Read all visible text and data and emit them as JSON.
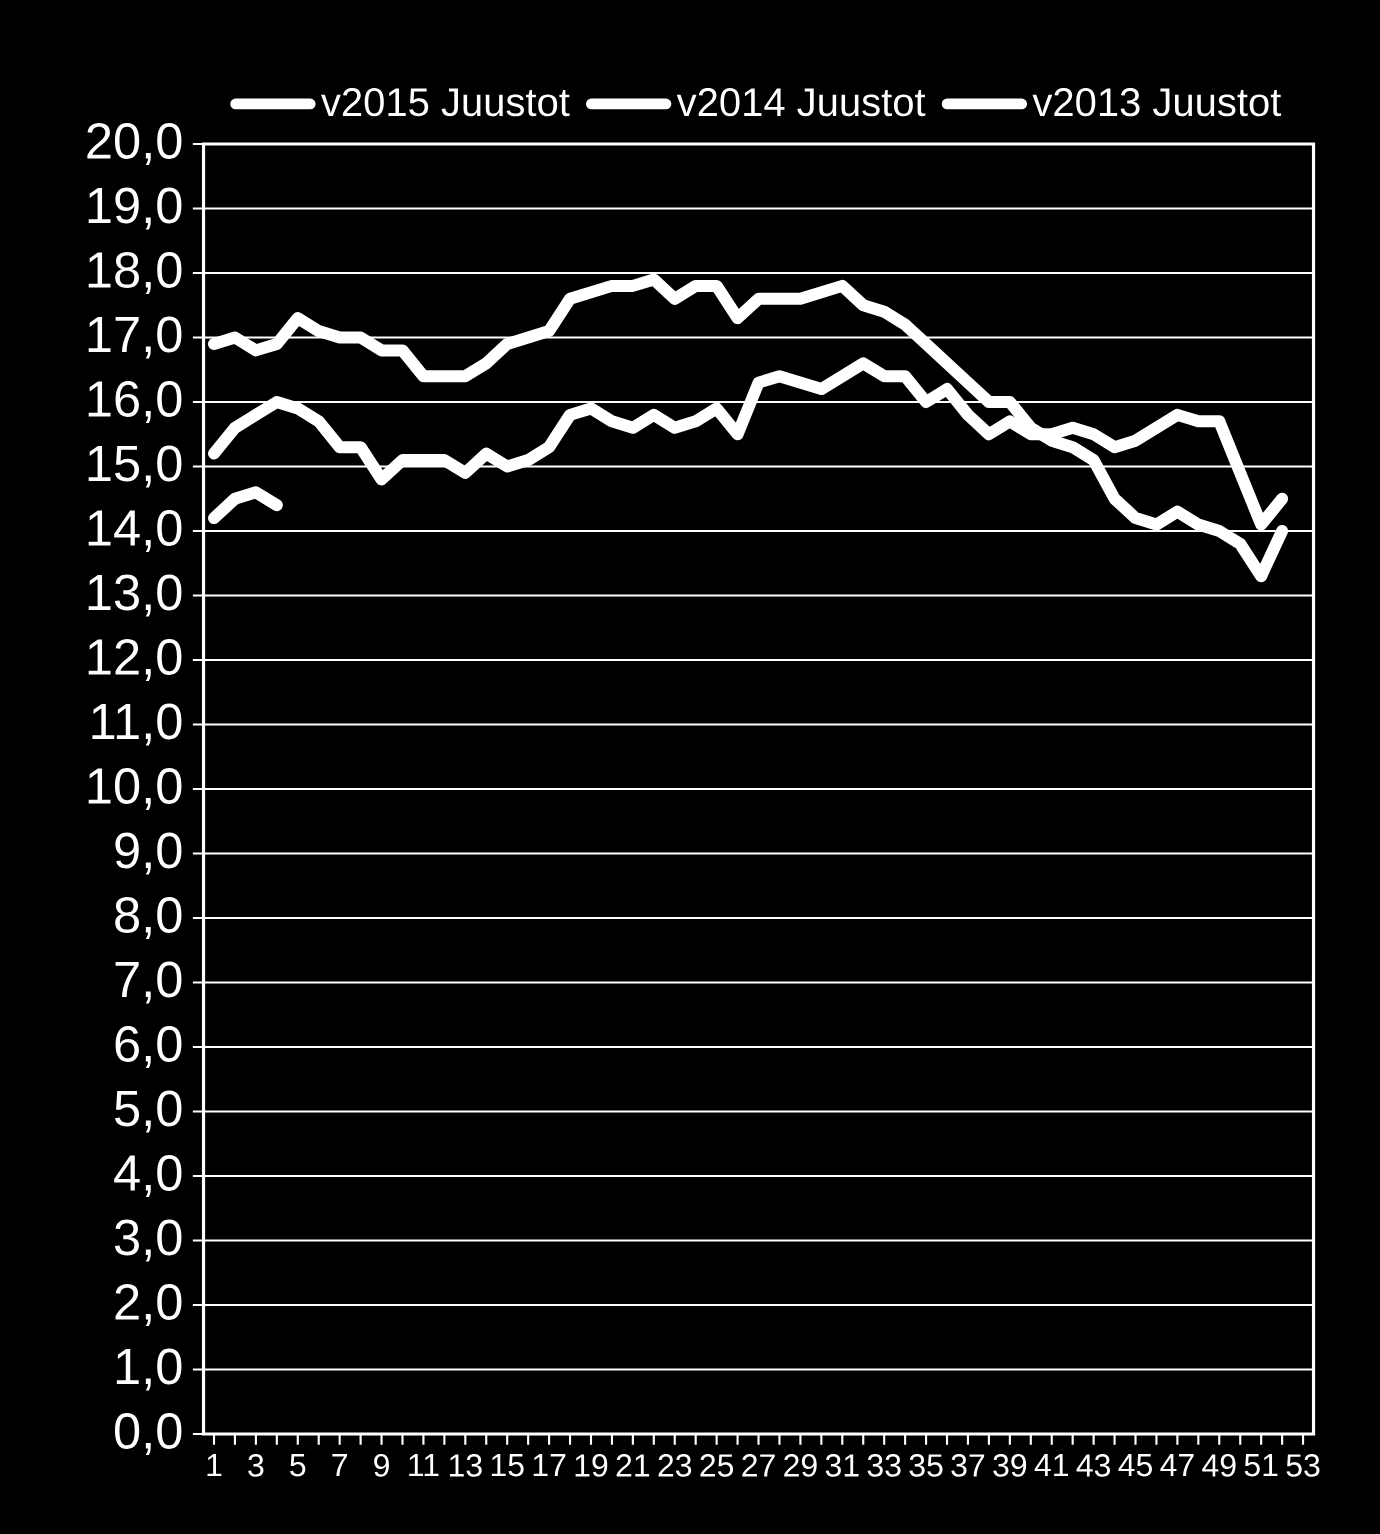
{
  "chart_data": {
    "type": "line",
    "categories": [
      "1",
      null,
      "3",
      null,
      "5",
      null,
      "7",
      null,
      "9",
      null,
      "11",
      null,
      "13",
      null,
      "15",
      null,
      "17",
      null,
      "19",
      null,
      "21",
      null,
      "23",
      null,
      "25",
      null,
      "27",
      null,
      "29",
      null,
      "31",
      null,
      "33",
      null,
      "35",
      null,
      "37",
      null,
      "39",
      null,
      "41",
      null,
      "43",
      null,
      "45",
      null,
      "47",
      null,
      "49",
      null,
      "51",
      null,
      "53"
    ],
    "series": [
      {
        "name": "v2015 Juustot",
        "color": "#ffffff",
        "values": [
          14.2,
          14.5,
          14.6,
          14.4,
          null,
          null,
          null,
          null,
          null,
          null,
          null,
          null,
          null,
          null,
          null,
          null,
          null,
          null,
          null,
          null,
          null,
          null,
          null,
          null,
          null,
          null,
          null,
          null,
          null,
          null,
          null,
          null,
          null,
          null,
          null,
          null,
          null,
          null,
          null,
          null,
          null,
          null,
          null,
          null,
          null,
          null,
          null,
          null,
          null,
          null,
          null,
          null,
          null
        ]
      },
      {
        "name": "v2014 Juustot",
        "color": "#ffffff",
        "values": [
          15.2,
          15.6,
          15.8,
          16.0,
          15.9,
          15.7,
          15.3,
          15.3,
          14.8,
          15.1,
          15.1,
          15.1,
          14.9,
          15.2,
          15.0,
          15.1,
          15.3,
          15.8,
          15.9,
          15.7,
          15.6,
          15.8,
          15.6,
          15.7,
          15.9,
          15.5,
          16.3,
          16.4,
          16.3,
          16.2,
          16.4,
          16.6,
          16.4,
          16.4,
          16.0,
          16.2,
          15.8,
          15.5,
          15.7,
          15.5,
          15.5,
          15.6,
          15.5,
          15.3,
          15.4,
          15.6,
          15.8,
          15.7,
          15.7,
          14.9,
          14.1,
          14.5,
          null
        ]
      },
      {
        "name": "v2013 Juustot",
        "color": "#ffffff",
        "values": [
          16.9,
          17.0,
          16.8,
          16.9,
          17.3,
          17.1,
          17.0,
          17.0,
          16.8,
          16.8,
          16.4,
          16.4,
          16.4,
          16.6,
          16.9,
          17.0,
          17.1,
          17.6,
          17.7,
          17.8,
          17.8,
          17.9,
          17.6,
          17.8,
          17.8,
          17.3,
          17.6,
          17.6,
          17.6,
          17.7,
          17.8,
          17.5,
          17.4,
          17.2,
          16.9,
          16.6,
          16.3,
          16.0,
          16.0,
          15.6,
          15.4,
          15.3,
          15.1,
          14.5,
          14.2,
          14.1,
          14.3,
          14.1,
          14.0,
          13.8,
          13.3,
          14.0,
          null
        ]
      }
    ],
    "ylim": [
      0,
      20
    ],
    "yticks": [
      {
        "value": 0,
        "label": "0,0"
      },
      {
        "value": 1,
        "label": "1,0"
      },
      {
        "value": 2,
        "label": "2,0"
      },
      {
        "value": 3,
        "label": "3,0"
      },
      {
        "value": 4,
        "label": "4,0"
      },
      {
        "value": 5,
        "label": "5,0"
      },
      {
        "value": 6,
        "label": "6,0"
      },
      {
        "value": 7,
        "label": "7,0"
      },
      {
        "value": 8,
        "label": "8,0"
      },
      {
        "value": 9,
        "label": "9,0"
      },
      {
        "value": 10,
        "label": "10,0"
      },
      {
        "value": 11,
        "label": "11,0"
      },
      {
        "value": 12,
        "label": "12,0"
      },
      {
        "value": 13,
        "label": "13,0"
      },
      {
        "value": 14,
        "label": "14,0"
      },
      {
        "value": 15,
        "label": "15,0"
      },
      {
        "value": 16,
        "label": "16,0"
      },
      {
        "value": 17,
        "label": "17,0"
      },
      {
        "value": 18,
        "label": "18,0"
      },
      {
        "value": 19,
        "label": "19,0"
      },
      {
        "value": 20,
        "label": "20,0"
      }
    ],
    "grid": "y",
    "legend": "top",
    "marker": "none",
    "line_style": "solid"
  }
}
